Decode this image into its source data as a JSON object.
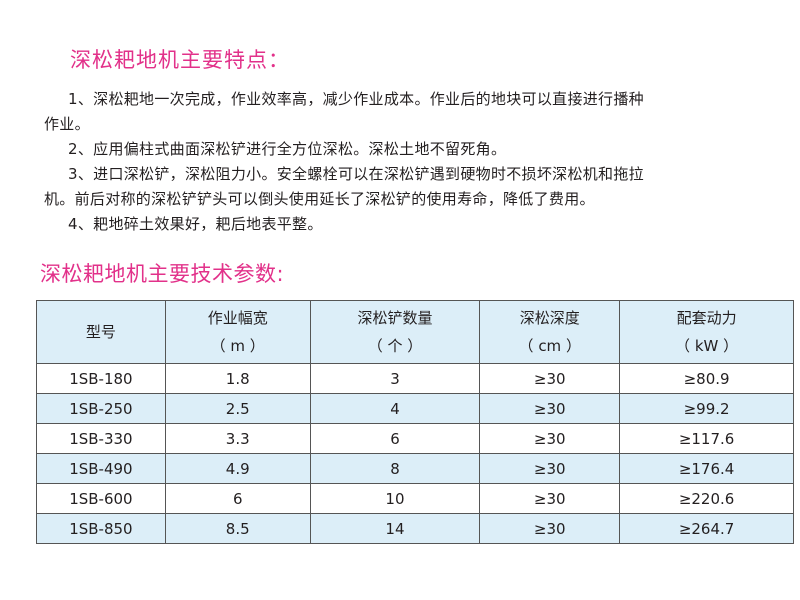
{
  "features": {
    "title": "深松耙地机主要特点：",
    "lines": [
      "1、深松耙地一次完成，作业效率高，减少作业成本。作业后的地块可以直接进行播种",
      "作业。",
      "2、应用偏柱式曲面深松铲进行全方位深松。深松土地不留死角。",
      "3、进口深松铲，深松阻力小。安全螺栓可以在深松铲遇到硬物时不损坏深松机和拖拉",
      "机。前后对称的深松铲铲头可以倒头使用延长了深松铲的使用寿命，降低了费用。",
      "4、耙地碎土效果好，耙后地表平整。"
    ]
  },
  "specs": {
    "title": "深松耙地机主要技术参数:",
    "headers": [
      {
        "name": "型号",
        "unit": ""
      },
      {
        "name": "作业幅宽",
        "unit": "（ m ）"
      },
      {
        "name": "深松铲数量",
        "unit": "（ 个 ）"
      },
      {
        "name": "深松深度",
        "unit": "（ cm ）"
      },
      {
        "name": "配套动力",
        "unit": "（ kW ）"
      }
    ],
    "rows": [
      [
        "1SB-180",
        "1.8",
        "3",
        "≥30",
        "≥80.9"
      ],
      [
        "1SB-250",
        "2.5",
        "4",
        "≥30",
        "≥99.2"
      ],
      [
        "1SB-330",
        "3.3",
        "6",
        "≥30",
        "≥117.6"
      ],
      [
        "1SB-490",
        "4.9",
        "8",
        "≥30",
        "≥176.4"
      ],
      [
        "1SB-600",
        "6",
        "10",
        "≥30",
        "≥220.6"
      ],
      [
        "1SB-850",
        "8.5",
        "14",
        "≥30",
        "≥264.7"
      ]
    ]
  },
  "colors": {
    "heading": "#e2318a",
    "table_tint": "#dceef8"
  }
}
